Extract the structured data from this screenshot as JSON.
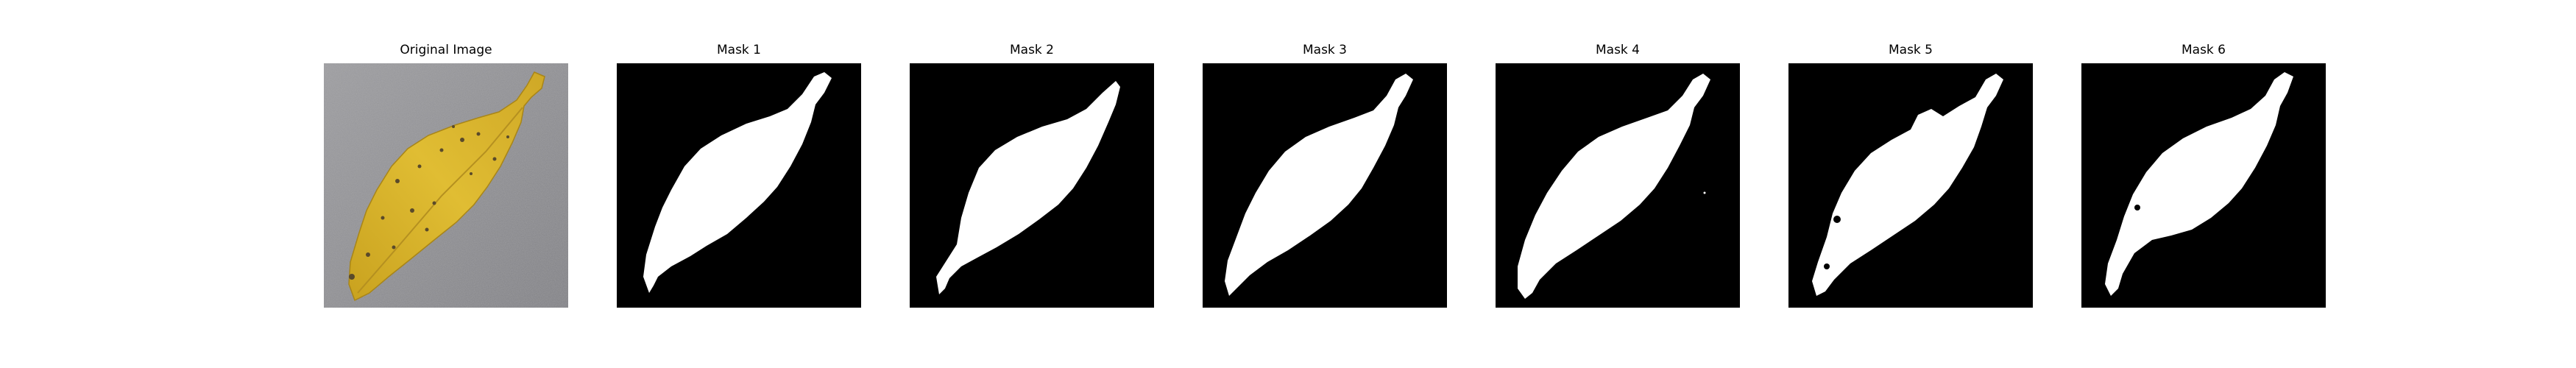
{
  "figure": {
    "panels": [
      {
        "title": "Original Image",
        "kind": "photo"
      },
      {
        "title": "Mask 1",
        "kind": "mask"
      },
      {
        "title": "Mask 2",
        "kind": "mask"
      },
      {
        "title": "Mask 3",
        "kind": "mask"
      },
      {
        "title": "Mask 4",
        "kind": "mask"
      },
      {
        "title": "Mask 5",
        "kind": "mask"
      },
      {
        "title": "Mask 6",
        "kind": "mask"
      }
    ]
  },
  "colors": {
    "mask_background": "#000000",
    "mask_foreground": "#ffffff",
    "photo_background": "#8d8d90",
    "leaf_fill": "#d6b12a",
    "leaf_shadow": "#b58e1c",
    "leaf_spot": "#5a4a2a"
  }
}
